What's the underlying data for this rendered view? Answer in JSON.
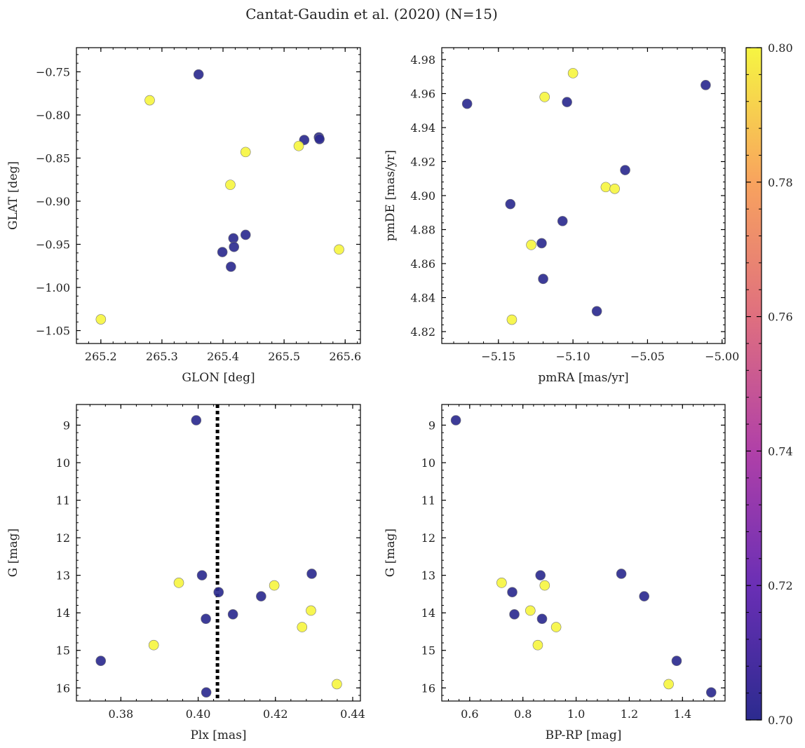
{
  "figure": {
    "title": "Cantat-Gaudin et al. (2020) (N=15)"
  },
  "colors": {
    "low": "#2c2b8f",
    "high": "#f6f542",
    "colormap": [
      "#2c2b8f",
      "#6a2fb5",
      "#b040a8",
      "#df6f7f",
      "#f8a35e",
      "#f6f542"
    ],
    "marker_edge": "#777777",
    "axis": "#000000",
    "vline": "#000000"
  },
  "chart_data": [
    {
      "id": "glon-glat",
      "type": "scatter",
      "xlabel": "GLON [deg]",
      "ylabel": "GLAT [deg]",
      "xlim": [
        265.16,
        265.625
      ],
      "ylim": [
        -1.065,
        -0.722
      ],
      "yinvert": false,
      "xticks": [
        "265.2",
        "265.3",
        "265.4",
        "265.5",
        "265.6"
      ],
      "yticks": [
        "−0.75",
        "−0.80",
        "−0.85",
        "−0.90",
        "−0.95",
        "−1.00",
        "−1.05"
      ],
      "points": [
        {
          "x": 265.36,
          "y": -0.753,
          "c": 0.7
        },
        {
          "x": 265.28,
          "y": -0.783,
          "c": 0.8
        },
        {
          "x": 265.533,
          "y": -0.829,
          "c": 0.7
        },
        {
          "x": 265.557,
          "y": -0.826,
          "c": 0.7
        },
        {
          "x": 265.558,
          "y": -0.828,
          "c": 0.7
        },
        {
          "x": 265.524,
          "y": -0.836,
          "c": 0.8
        },
        {
          "x": 265.437,
          "y": -0.843,
          "c": 0.8
        },
        {
          "x": 265.412,
          "y": -0.881,
          "c": 0.8
        },
        {
          "x": 265.437,
          "y": -0.939,
          "c": 0.7
        },
        {
          "x": 265.417,
          "y": -0.943,
          "c": 0.7
        },
        {
          "x": 265.418,
          "y": -0.953,
          "c": 0.7
        },
        {
          "x": 265.399,
          "y": -0.959,
          "c": 0.7
        },
        {
          "x": 265.413,
          "y": -0.976,
          "c": 0.7
        },
        {
          "x": 265.59,
          "y": -0.956,
          "c": 0.8
        },
        {
          "x": 265.2,
          "y": -1.037,
          "c": 0.8
        }
      ]
    },
    {
      "id": "pmra-pmde",
      "type": "scatter",
      "xlabel": "pmRA [mas/yr]",
      "ylabel": "pmDE [mas/yr]",
      "xlim": [
        -5.188,
        -4.998
      ],
      "ylim": [
        4.813,
        4.987
      ],
      "yinvert": false,
      "xticks": [
        "−5.15",
        "−5.10",
        "−5.05",
        "−5.00"
      ],
      "yticks": [
        "4.98",
        "4.96",
        "4.94",
        "4.92",
        "4.90",
        "4.88",
        "4.86",
        "4.84",
        "4.82"
      ],
      "points": [
        {
          "x": -5.1,
          "y": 4.972,
          "c": 0.8
        },
        {
          "x": -5.011,
          "y": 4.965,
          "c": 0.7
        },
        {
          "x": -5.119,
          "y": 4.958,
          "c": 0.8
        },
        {
          "x": -5.104,
          "y": 4.955,
          "c": 0.7
        },
        {
          "x": -5.171,
          "y": 4.954,
          "c": 0.7
        },
        {
          "x": -5.065,
          "y": 4.915,
          "c": 0.7
        },
        {
          "x": -5.078,
          "y": 4.905,
          "c": 0.8
        },
        {
          "x": -5.072,
          "y": 4.904,
          "c": 0.8
        },
        {
          "x": -5.142,
          "y": 4.895,
          "c": 0.7
        },
        {
          "x": -5.107,
          "y": 4.885,
          "c": 0.7
        },
        {
          "x": -5.121,
          "y": 4.872,
          "c": 0.7
        },
        {
          "x": -5.128,
          "y": 4.871,
          "c": 0.8
        },
        {
          "x": -5.12,
          "y": 4.851,
          "c": 0.7
        },
        {
          "x": -5.084,
          "y": 4.832,
          "c": 0.7
        },
        {
          "x": -5.141,
          "y": 4.827,
          "c": 0.8
        }
      ]
    },
    {
      "id": "plx-g",
      "type": "scatter",
      "xlabel": "Plx [mas]",
      "ylabel": "G [mag]",
      "xlim": [
        0.3685,
        0.442
      ],
      "ylim": [
        8.45,
        16.35
      ],
      "yinvert": true,
      "xticks": [
        "0.38",
        "0.40",
        "0.42",
        "0.44"
      ],
      "yticks": [
        "9",
        "10",
        "11",
        "12",
        "13",
        "14",
        "15",
        "16"
      ],
      "vline": 0.405,
      "points": [
        {
          "x": 0.3995,
          "y": 8.87,
          "c": 0.7
        },
        {
          "x": 0.395,
          "y": 13.2,
          "c": 0.8
        },
        {
          "x": 0.401,
          "y": 13.0,
          "c": 0.7
        },
        {
          "x": 0.4053,
          "y": 13.45,
          "c": 0.7
        },
        {
          "x": 0.4197,
          "y": 13.27,
          "c": 0.8
        },
        {
          "x": 0.4294,
          "y": 12.96,
          "c": 0.7
        },
        {
          "x": 0.4163,
          "y": 13.56,
          "c": 0.7
        },
        {
          "x": 0.4292,
          "y": 13.94,
          "c": 0.8
        },
        {
          "x": 0.402,
          "y": 14.16,
          "c": 0.7
        },
        {
          "x": 0.409,
          "y": 14.04,
          "c": 0.7
        },
        {
          "x": 0.4269,
          "y": 14.38,
          "c": 0.8
        },
        {
          "x": 0.3885,
          "y": 14.86,
          "c": 0.8
        },
        {
          "x": 0.3748,
          "y": 15.28,
          "c": 0.7
        },
        {
          "x": 0.4359,
          "y": 15.9,
          "c": 0.8
        },
        {
          "x": 0.4021,
          "y": 16.12,
          "c": 0.7
        }
      ]
    },
    {
      "id": "bprp-g",
      "type": "scatter",
      "xlabel": "BP-RP [mag]",
      "ylabel": "G [mag]",
      "xlim": [
        0.495,
        1.56
      ],
      "ylim": [
        8.45,
        16.35
      ],
      "yinvert": true,
      "xticks": [
        "0.6",
        "0.8",
        "1.0",
        "1.2",
        "1.4"
      ],
      "yticks": [
        "9",
        "10",
        "11",
        "12",
        "13",
        "14",
        "15",
        "16"
      ],
      "points": [
        {
          "x": 0.548,
          "y": 8.87,
          "c": 0.7
        },
        {
          "x": 0.72,
          "y": 13.2,
          "c": 0.8
        },
        {
          "x": 0.866,
          "y": 13.0,
          "c": 0.7
        },
        {
          "x": 0.76,
          "y": 13.45,
          "c": 0.7
        },
        {
          "x": 0.882,
          "y": 13.27,
          "c": 0.8
        },
        {
          "x": 1.17,
          "y": 12.96,
          "c": 0.7
        },
        {
          "x": 1.256,
          "y": 13.56,
          "c": 0.7
        },
        {
          "x": 0.828,
          "y": 13.94,
          "c": 0.8
        },
        {
          "x": 0.872,
          "y": 14.16,
          "c": 0.7
        },
        {
          "x": 0.768,
          "y": 14.04,
          "c": 0.7
        },
        {
          "x": 0.925,
          "y": 14.38,
          "c": 0.8
        },
        {
          "x": 0.856,
          "y": 14.86,
          "c": 0.8
        },
        {
          "x": 1.378,
          "y": 15.28,
          "c": 0.7
        },
        {
          "x": 1.348,
          "y": 15.9,
          "c": 0.8
        },
        {
          "x": 1.508,
          "y": 16.12,
          "c": 0.7
        }
      ]
    }
  ],
  "colorbar": {
    "min": 0.7,
    "max": 0.8,
    "ticks": [
      "0.70",
      "0.72",
      "0.74",
      "0.76",
      "0.78",
      "0.80"
    ]
  }
}
